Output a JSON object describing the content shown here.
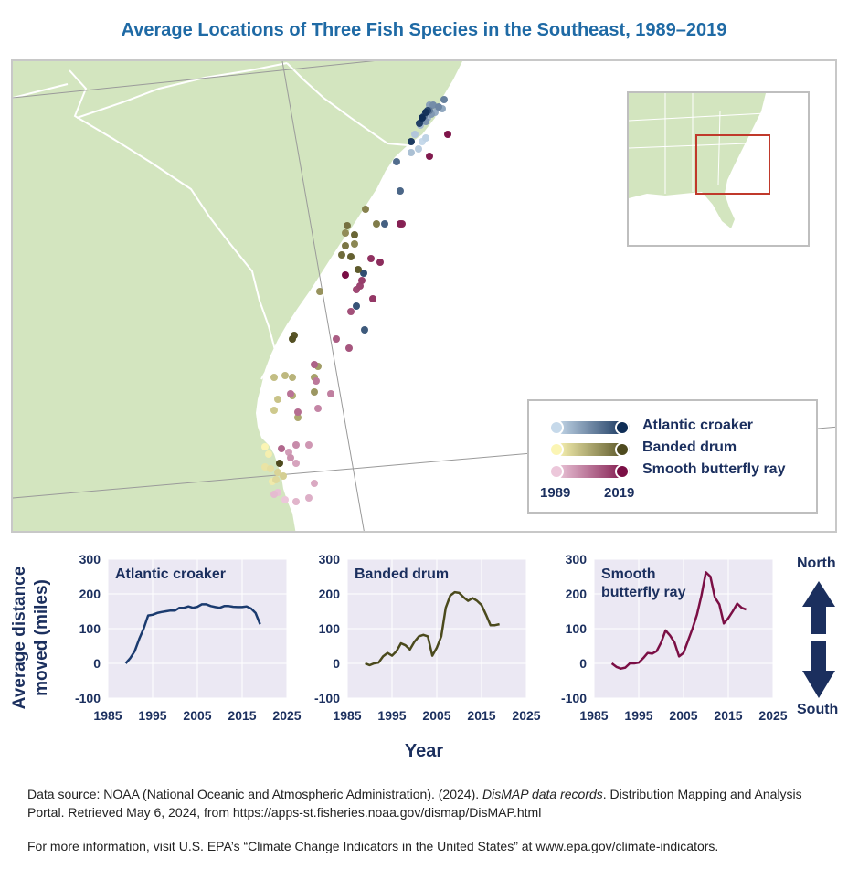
{
  "title": "Average Locations of Three Fish Species in the Southeast, 1989–2019",
  "legend": {
    "series": [
      {
        "name": "Atlantic croaker",
        "color_start": "#c6d9ea",
        "color_end": "#0e2d56"
      },
      {
        "name": "Banded drum",
        "color_start": "#fbf5b4",
        "color_end": "#4e4a1e"
      },
      {
        "name": "Smooth butterfly ray",
        "color_start": "#ecc7da",
        "color_end": "#7a0e44"
      }
    ],
    "start_year": "1989",
    "end_year": "2019"
  },
  "colors": {
    "land": "#d3e5bf",
    "croaker": "#1b3b6f",
    "drum": "#4b4a1d",
    "ray": "#7b0f45",
    "panel_bg": "#ebe8f3",
    "inset_box": "#c0392b"
  },
  "chart_data": [
    {
      "type": "line",
      "title": "Atlantic croaker",
      "ylim": [
        -100,
        300
      ],
      "xlim": [
        1985,
        2025
      ],
      "yticks": [
        "300",
        "200",
        "100",
        "0",
        "-100"
      ],
      "xticks": [
        "1985",
        "1995",
        "2005",
        "2015",
        "2025"
      ],
      "x": [
        1989,
        1990,
        1991,
        1992,
        1993,
        1994,
        1995,
        1996,
        1997,
        1998,
        1999,
        2000,
        2001,
        2002,
        2003,
        2004,
        2005,
        2006,
        2007,
        2008,
        2009,
        2010,
        2011,
        2012,
        2013,
        2014,
        2015,
        2016,
        2017,
        2018,
        2019
      ],
      "values": [
        0,
        15,
        35,
        70,
        100,
        138,
        140,
        145,
        148,
        150,
        152,
        152,
        160,
        160,
        164,
        160,
        163,
        170,
        170,
        165,
        162,
        160,
        165,
        165,
        163,
        162,
        162,
        164,
        158,
        145,
        113
      ],
      "color": "#1b3b6f"
    },
    {
      "type": "line",
      "title": "Banded drum",
      "ylim": [
        -100,
        300
      ],
      "xlim": [
        1985,
        2025
      ],
      "yticks": [
        "300",
        "200",
        "100",
        "0",
        "-100"
      ],
      "xticks": [
        "1985",
        "1995",
        "2005",
        "2015",
        "2025"
      ],
      "x": [
        1989,
        1990,
        1991,
        1992,
        1993,
        1994,
        1995,
        1996,
        1997,
        1998,
        1999,
        2000,
        2001,
        2002,
        2003,
        2004,
        2005,
        2006,
        2007,
        2008,
        2009,
        2010,
        2011,
        2012,
        2013,
        2014,
        2015,
        2016,
        2017,
        2018,
        2019
      ],
      "values": [
        0,
        -5,
        0,
        2,
        20,
        30,
        22,
        35,
        58,
        52,
        40,
        62,
        78,
        82,
        78,
        22,
        45,
        78,
        160,
        195,
        205,
        203,
        190,
        180,
        188,
        180,
        168,
        140,
        110,
        110,
        113
      ],
      "color": "#4b4a1d"
    },
    {
      "type": "line",
      "title": "Smooth\nbutterfly ray",
      "ylim": [
        -100,
        300
      ],
      "xlim": [
        1985,
        2025
      ],
      "yticks": [
        "300",
        "200",
        "100",
        "0",
        "-100"
      ],
      "xticks": [
        "1985",
        "1995",
        "2005",
        "2015",
        "2025"
      ],
      "x": [
        1989,
        1990,
        1991,
        1992,
        1993,
        1994,
        1995,
        1996,
        1997,
        1998,
        1999,
        2000,
        2001,
        2002,
        2003,
        2004,
        2005,
        2006,
        2007,
        2008,
        2009,
        2010,
        2011,
        2012,
        2013,
        2014,
        2015,
        2016,
        2017,
        2018,
        2019
      ],
      "values": [
        0,
        -10,
        -15,
        -12,
        0,
        0,
        2,
        15,
        30,
        28,
        35,
        60,
        95,
        80,
        60,
        20,
        30,
        65,
        100,
        140,
        195,
        262,
        250,
        190,
        170,
        115,
        130,
        150,
        172,
        160,
        155
      ],
      "color": "#7b0f45"
    }
  ],
  "axes": {
    "ylabel_line1": "Average distance",
    "ylabel_line2": "moved (miles)",
    "xlabel": "Year",
    "north": "North",
    "south": "South"
  },
  "footer": {
    "source_prefix": "Data source: NOAA (National Oceanic and Atmospheric Administration). (2024). ",
    "source_title": "DisMAP data records",
    "source_suffix": ". Distribution Mapping and Analysis Portal. Retrieved May 6, 2024, from https://apps-st.fisheries.noaa.gov/dismap/DisMAP.html",
    "info": "For more information, visit U.S. EPA’s “Climate Change Indicators in the United States” at www.epa.gov/climate-indicators."
  }
}
